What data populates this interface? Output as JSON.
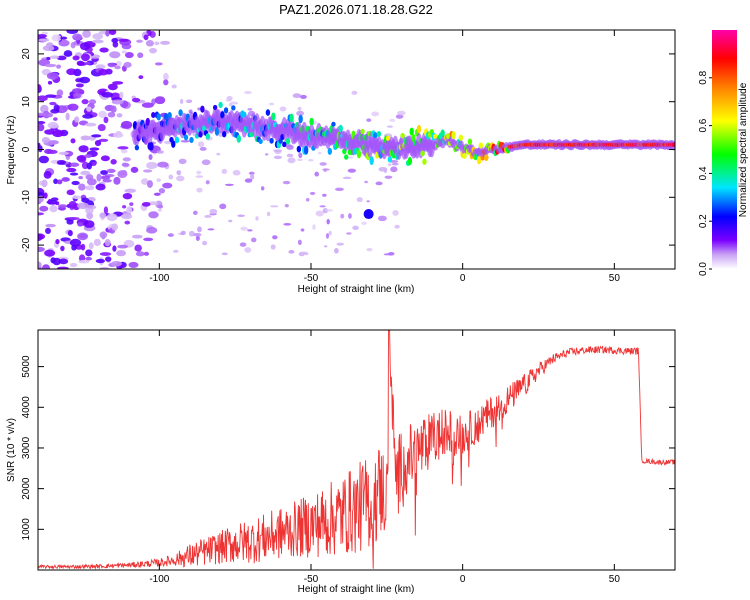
{
  "figure": {
    "title": "PAZ1.2026.071.18.28.G22"
  },
  "chart_data": [
    {
      "type": "heatmap",
      "title": "PAZ1.2026.071.18.28.G22",
      "xlabel": "Height of straight line (km)",
      "ylabel": "Frequency (Hz)",
      "xlim": [
        -140,
        70
      ],
      "ylim": [
        -25,
        25
      ],
      "x_ticks": [
        -100,
        -50,
        0,
        50
      ],
      "y_ticks": [
        -20,
        -10,
        0,
        10,
        20
      ],
      "colorbar": {
        "label": "Normalized spectral amplitude",
        "range": [
          0,
          1
        ],
        "ticks": [
          0.0,
          0.2,
          0.4,
          0.6,
          0.8
        ],
        "colors": [
          "#ffffff",
          "#c9a3f5",
          "#7a00ff",
          "#0000ff",
          "#00e5ff",
          "#00ff00",
          "#ffff00",
          "#ff8000",
          "#ff0000",
          "#ff00aa"
        ]
      },
      "ridge": {
        "description_points_x": [
          -108,
          -100,
          -90,
          -80,
          -70,
          -60,
          -50,
          -40,
          -30,
          -20,
          -10,
          -5,
          0,
          5,
          10,
          20,
          30,
          40,
          50,
          60,
          70
        ],
        "frequency_hz": [
          3,
          4,
          5,
          6,
          5,
          4,
          3,
          2,
          1,
          0.5,
          1,
          2,
          0.5,
          -0.5,
          0,
          1,
          1,
          1,
          1,
          1,
          1
        ],
        "amplitude": [
          0.25,
          0.3,
          0.35,
          0.35,
          0.4,
          0.4,
          0.45,
          0.5,
          0.55,
          0.6,
          0.65,
          0.7,
          0.75,
          0.8,
          0.85,
          0.9,
          0.9,
          0.9,
          0.9,
          0.9,
          0.9
        ]
      },
      "isolated_blob": {
        "x": -31,
        "frequency_hz": -13.5,
        "amplitude": 0.2
      }
    },
    {
      "type": "line",
      "xlabel": "Height of straight line (km)",
      "ylabel": "SNR (10 * v/v)",
      "xlim": [
        -140,
        70
      ],
      "ylim": [
        0,
        5900
      ],
      "x_ticks": [
        -100,
        -50,
        0,
        50
      ],
      "y_ticks": [
        1000,
        2000,
        3000,
        4000,
        5000
      ],
      "series": [
        {
          "name": "SNR",
          "color": "#ee3333",
          "x": [
            -140,
            -130,
            -120,
            -110,
            -100,
            -95,
            -90,
            -85,
            -80,
            -75,
            -70,
            -65,
            -60,
            -55,
            -50,
            -45,
            -40,
            -35,
            -30,
            -27,
            -25,
            -24,
            -22,
            -20,
            -15,
            -10,
            -5,
            0,
            5,
            10,
            15,
            20,
            25,
            30,
            35,
            40,
            45,
            50,
            55,
            58,
            59,
            60,
            65,
            70
          ],
          "values": [
            80,
            80,
            90,
            120,
            180,
            250,
            350,
            450,
            550,
            650,
            700,
            800,
            900,
            1000,
            1100,
            1200,
            1350,
            1500,
            1700,
            2000,
            1800,
            5200,
            2300,
            2600,
            2900,
            3200,
            3400,
            3300,
            3600,
            3900,
            4200,
            4500,
            4900,
            5200,
            5350,
            5400,
            5420,
            5400,
            5380,
            5380,
            2700,
            2680,
            2650,
            2650
          ],
          "noise_amplitude": [
            40,
            40,
            50,
            60,
            100,
            150,
            300,
            350,
            400,
            500,
            550,
            600,
            650,
            700,
            800,
            900,
            1000,
            1100,
            1200,
            1200,
            1000,
            500,
            900,
            900,
            800,
            700,
            600,
            500,
            450,
            400,
            350,
            300,
            200,
            120,
            100,
            90,
            90,
            90,
            90,
            90,
            60,
            60,
            60,
            60
          ]
        }
      ]
    }
  ]
}
